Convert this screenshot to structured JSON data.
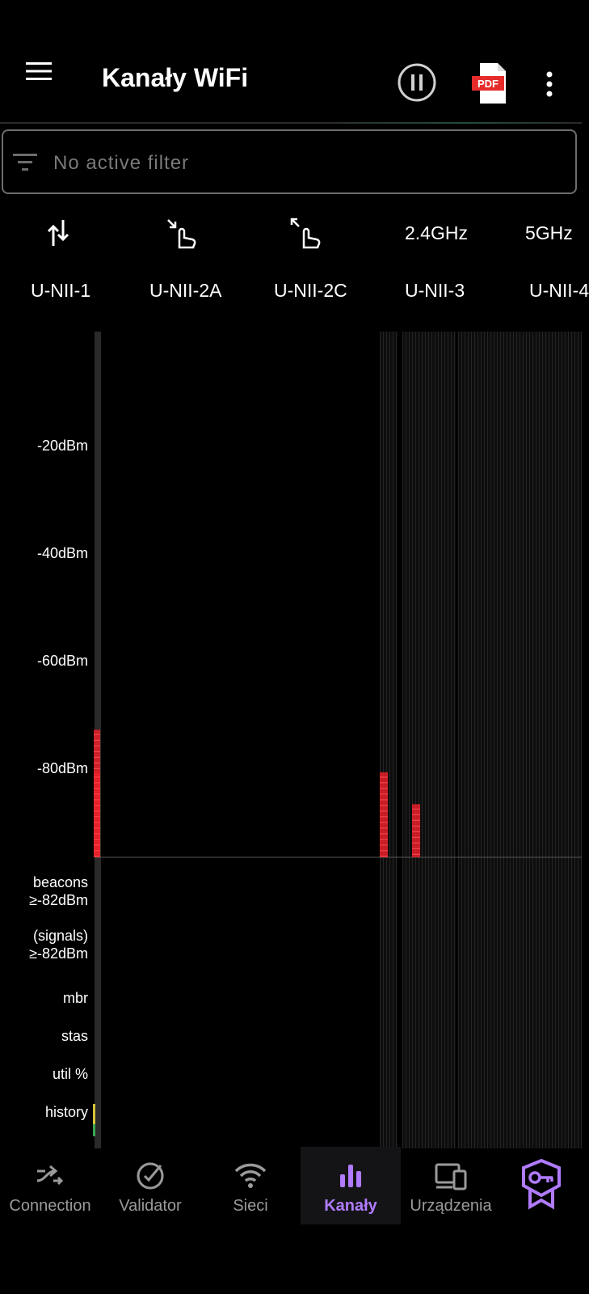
{
  "toolbar": {
    "title": "Kanały WiFi",
    "icons": [
      "hamburger-menu-icon",
      "pause-icon",
      "pdf-export-icon",
      "more-vert-icon"
    ],
    "accent": "#b07bff"
  },
  "filter": {
    "placeholder": "No active filter",
    "icon": "filter-icon"
  },
  "controls": {
    "icons": [
      "sort-vertical-icon",
      "zoom-in-gesture-icon",
      "zoom-out-gesture-icon"
    ],
    "band_24": "2.4GHz",
    "band_5": "5GHz"
  },
  "bands": [
    "U-NII-1",
    "U-NII-2A",
    "U-NII-2C",
    "U-NII-3",
    "U-NII-4"
  ],
  "chart_data": {
    "type": "bar",
    "ylabel_ticks": [
      "-20dBm",
      "-40dBm",
      "-60dBm",
      "-80dBm"
    ],
    "ylim": [
      -100,
      0
    ],
    "signal_color": "#e8202a",
    "signals": [
      {
        "band": "U-NII-1",
        "dbm": -76
      },
      {
        "band": "U-NII-1",
        "dbm": -84
      },
      {
        "band": "U-NII-3",
        "dbm": -84
      },
      {
        "band": "U-NII-3",
        "dbm": -90
      }
    ],
    "row_labels": [
      "beacons ≥-82dBm",
      "(signals) ≥-82dBm",
      "mbr",
      "stas",
      "util %",
      "history"
    ]
  },
  "nav": {
    "items": [
      {
        "label": "Connection",
        "icon": "connection-icon"
      },
      {
        "label": "Validator",
        "icon": "check-circle-icon"
      },
      {
        "label": "Sieci",
        "icon": "wifi-icon"
      },
      {
        "label": "Kanały",
        "icon": "bar-chart-icon"
      },
      {
        "label": "Urządzenia",
        "icon": "devices-icon"
      },
      {
        "label": "",
        "icon": "premium-key-badge-icon"
      }
    ],
    "active": "Kanały"
  }
}
